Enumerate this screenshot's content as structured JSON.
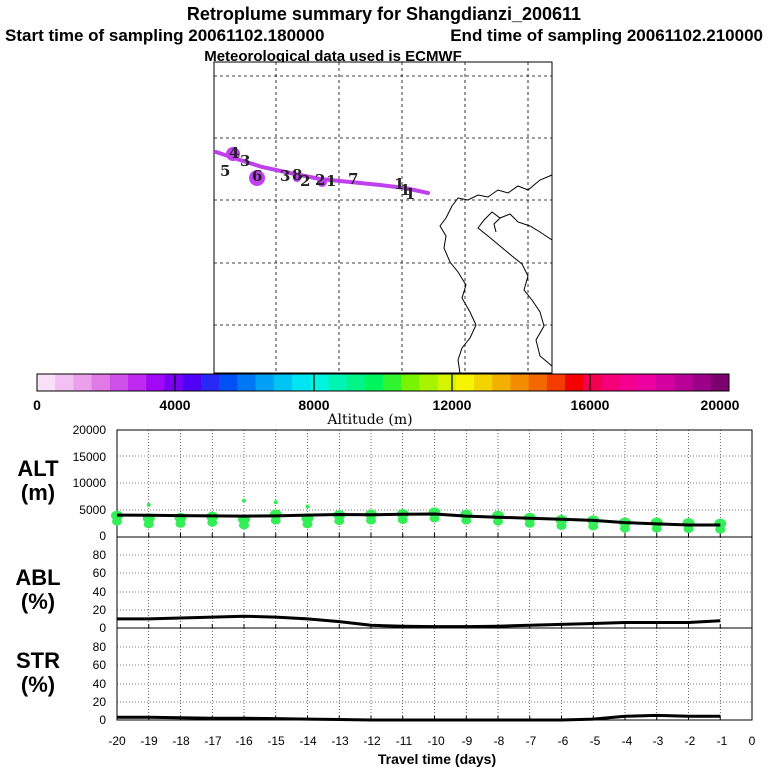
{
  "header": {
    "title": "Retroplume summary for Shangdianzi_200611",
    "start_time": "Start time of sampling 20061102.180000",
    "end_time": "End time of sampling 20061102.210000",
    "met_data": "Meteorological data used is ECMWF"
  },
  "colorbar": {
    "tick_labels": [
      "0",
      "4000",
      "8000",
      "12000",
      "16000",
      "20000"
    ],
    "label": "Altitude (m)",
    "colors": [
      "#f9e0f9",
      "#f2c0f2",
      "#eaa0ea",
      "#e07ae6",
      "#d050ea",
      "#bf28f0",
      "#a008f6",
      "#7a00f4",
      "#5000f4",
      "#2828f4",
      "#0050f4",
      "#0078f4",
      "#00a0f4",
      "#00c4f4",
      "#00e4f4",
      "#00f4e0",
      "#00f4b4",
      "#00f488",
      "#00f45c",
      "#30f430",
      "#78f400",
      "#a8f400",
      "#d4f400",
      "#f4f400",
      "#f4d400",
      "#f4b000",
      "#f48c00",
      "#f46800",
      "#f43c00",
      "#f40000",
      "#f40050",
      "#f40078",
      "#f40090",
      "#ec00a0",
      "#d400a0",
      "#b80098",
      "#9c0088",
      "#7c0070"
    ]
  },
  "map": {
    "trajectory_color": "#c040f0",
    "particle_labels": [
      "4",
      "5",
      "3",
      "6",
      "3",
      "2",
      "8",
      "2",
      "1",
      "7",
      "1",
      "1",
      "1"
    ]
  },
  "chart_data": [
    {
      "type": "scatter+line",
      "panel_label": [
        "ALT",
        "(m)"
      ],
      "x": [
        -20,
        -19,
        -18,
        -17,
        -16,
        -15,
        -14,
        -13,
        -12,
        -11,
        -10,
        -9,
        -8,
        -7,
        -6,
        -5,
        -4,
        -3,
        -2,
        -1
      ],
      "line_values": [
        4100,
        4050,
        4000,
        3950,
        3900,
        3950,
        4100,
        4200,
        4150,
        4250,
        4300,
        3900,
        3700,
        3500,
        3300,
        3100,
        2700,
        2450,
        2250,
        2250
      ],
      "scatter_values": [
        4000,
        3500,
        3600,
        3800,
        3300,
        4200,
        3500,
        4100,
        4200,
        4300,
        4600,
        4200,
        4000,
        3600,
        3200,
        3100,
        2700,
        2700,
        2600,
        2500
      ],
      "scatter_outliers": [
        {
          "x": -19,
          "y": 6000
        },
        {
          "x": -16,
          "y": 6800
        },
        {
          "x": -15,
          "y": 6500
        },
        {
          "x": -14,
          "y": 5700
        }
      ],
      "scatter_color": "#33ee55",
      "ylim": [
        0,
        20000
      ],
      "yticks": [
        "20000",
        "15000",
        "10000",
        "5000",
        "0"
      ]
    },
    {
      "type": "line",
      "panel_label": [
        "ABL",
        "(%)"
      ],
      "x": [
        -20,
        -19,
        -18,
        -17,
        -16,
        -15,
        -14,
        -13,
        -12,
        -11,
        -10,
        -9,
        -8,
        -7,
        -6,
        -5,
        -4,
        -3,
        -2,
        -1
      ],
      "values": [
        10,
        10,
        11,
        12,
        13,
        12,
        10,
        7,
        3,
        2,
        1.5,
        1.5,
        2,
        3,
        4,
        5,
        6,
        6,
        6,
        8
      ],
      "ylim": [
        0,
        100
      ],
      "yticks": [
        "80",
        "60",
        "40",
        "20",
        "0"
      ]
    },
    {
      "type": "line",
      "panel_label": [
        "STR",
        "(%)"
      ],
      "x": [
        -20,
        -19,
        -18,
        -17,
        -16,
        -15,
        -14,
        -13,
        -12,
        -11,
        -10,
        -9,
        -8,
        -7,
        -6,
        -5,
        -4,
        -3,
        -2,
        -1
      ],
      "values": [
        3,
        3,
        2.5,
        2,
        2,
        1.5,
        1,
        0.5,
        0,
        0,
        0,
        0,
        0,
        0,
        0,
        1,
        4,
        5,
        4,
        4
      ],
      "ylim": [
        0,
        100
      ],
      "yticks": [
        "80",
        "60",
        "40",
        "20",
        "0"
      ]
    }
  ],
  "xaxis": {
    "tick_labels": [
      "-20",
      "-19",
      "-18",
      "-17",
      "-16",
      "-15",
      "-14",
      "-13",
      "-12",
      "-11",
      "-10",
      "-9",
      "-8",
      "-7",
      "-6",
      "-5",
      "-4",
      "-3",
      "-2",
      "-1",
      "0"
    ],
    "label": "Travel time (days)"
  }
}
